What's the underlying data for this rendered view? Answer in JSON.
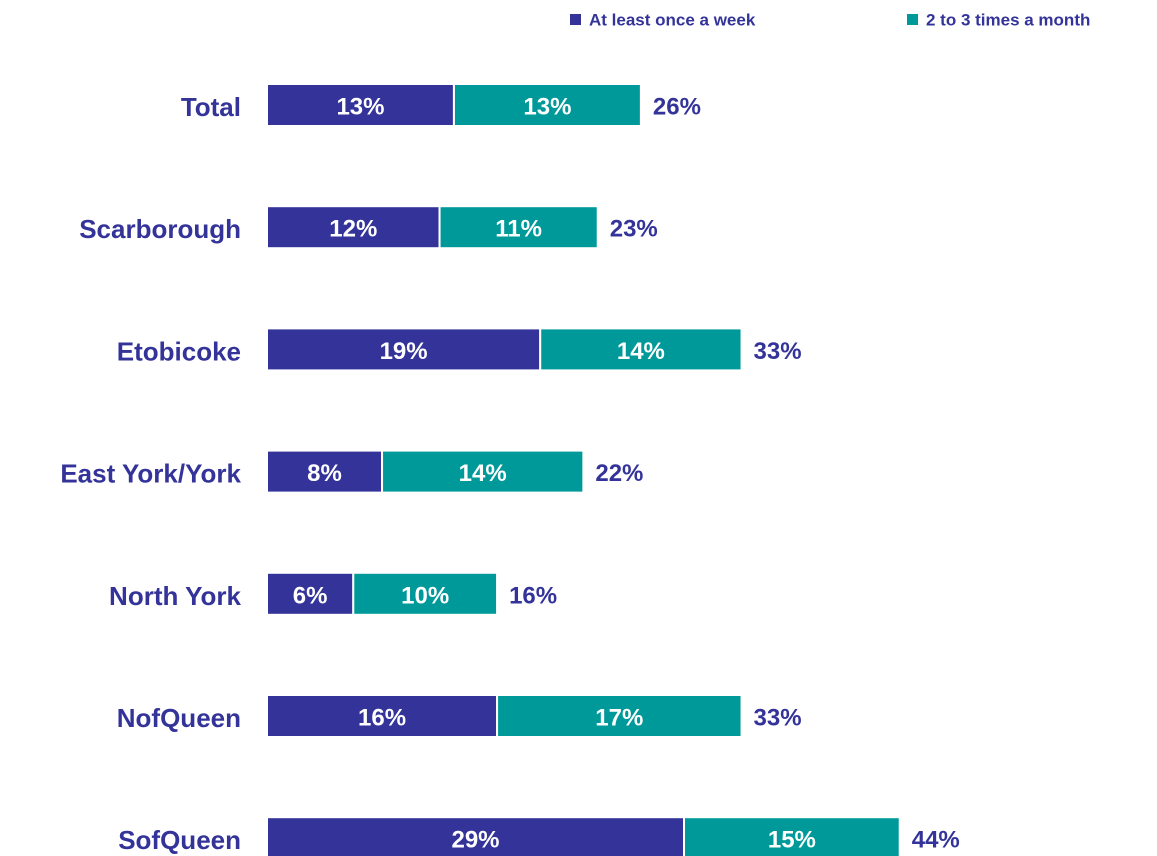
{
  "chart_data": {
    "type": "stacked_barh",
    "categories": [
      "Total",
      "Scarborough",
      "Etobicoke",
      "East York/York",
      "North York",
      "NofQueen",
      "SofQueen"
    ],
    "series": [
      {
        "name": "At least once a week",
        "color": "#333399",
        "values": [
          13,
          12,
          19,
          8,
          6,
          16,
          29
        ],
        "value_labels": [
          "13%",
          "12%",
          "19%",
          "8%",
          "6%",
          "16%",
          "29%"
        ]
      },
      {
        "name": "2 to 3 times a month",
        "color": "#009999",
        "values": [
          13,
          11,
          14,
          14,
          10,
          17,
          15
        ],
        "value_labels": [
          "13%",
          "11%",
          "14%",
          "14%",
          "10%",
          "17%",
          "15%"
        ]
      }
    ],
    "totals": [
      26,
      23,
      33,
      22,
      16,
      33,
      44
    ],
    "total_labels": [
      "26%",
      "23%",
      "33%",
      "22%",
      "16%",
      "33%",
      "44%"
    ],
    "legend": "top-right"
  }
}
